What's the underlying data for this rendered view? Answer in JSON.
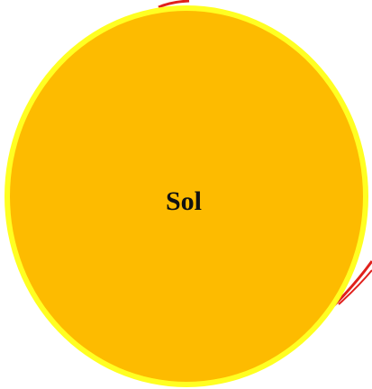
{
  "label": "Sol"
}
